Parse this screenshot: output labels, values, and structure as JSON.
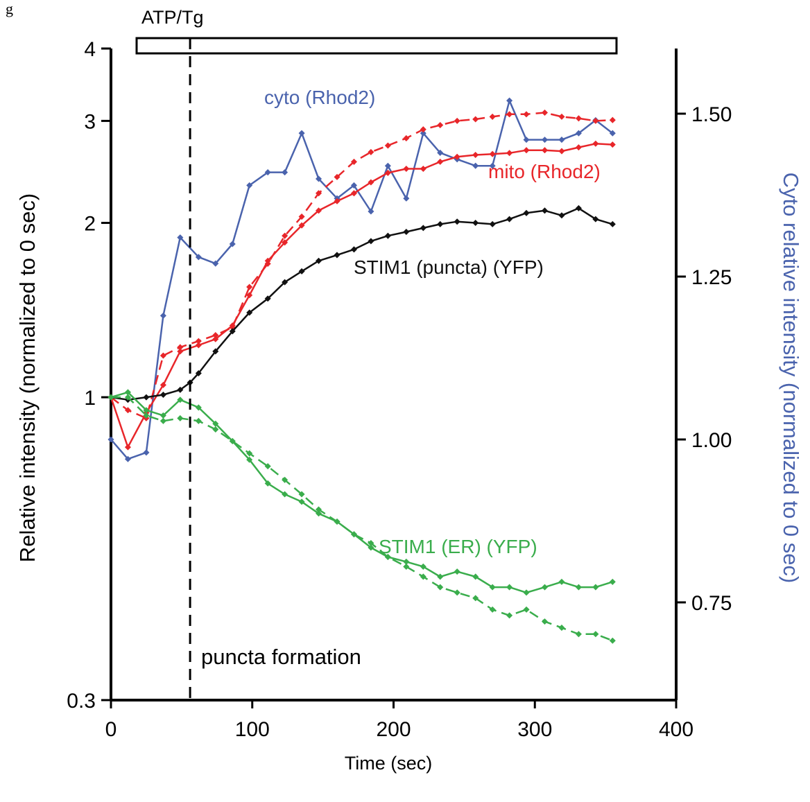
{
  "figure_letter": "g",
  "chart_data": {
    "type": "line",
    "xlabel": "Time (sec)",
    "ylabel_left": "Relative intensity (normalized to 0 sec)",
    "ylabel_right": "Cyto relative intensity (normalized to 0 sec)",
    "xlim": [
      0,
      400
    ],
    "ylim_left": [
      0.3,
      4
    ],
    "ylim_left_scale": "log",
    "ylim_right": [
      0.6,
      1.6
    ],
    "x_ticks": [
      0,
      100,
      200,
      300,
      400
    ],
    "x_tick_labels": [
      "0",
      "100",
      "200",
      "300",
      "400"
    ],
    "y_left_ticks": [
      0.3,
      1,
      2,
      3,
      4
    ],
    "y_left_tick_labels": [
      "0.3",
      "1",
      "2",
      "3",
      "4"
    ],
    "y_right_ticks": [
      0.75,
      1.0,
      1.25,
      1.5
    ],
    "y_right_tick_labels": [
      "0.75",
      "1.00",
      "1.25",
      "1.50"
    ],
    "treatment_bar": {
      "label": "ATP/Tg",
      "start": 17,
      "end": 360
    },
    "annotation": {
      "label": "puncta formation",
      "x": 56
    },
    "series": [
      {
        "name": "cyto (Rhod2)",
        "axis": "right",
        "color": "#4a63ad",
        "style": "solid",
        "x": [
          0,
          12,
          25,
          37,
          49,
          62,
          74,
          86,
          98,
          111,
          123,
          135,
          147,
          160,
          172,
          184,
          196,
          209,
          221,
          233,
          245,
          258,
          270,
          282,
          294,
          307,
          319,
          331,
          343,
          355
        ],
        "y": [
          1.0,
          0.97,
          0.98,
          1.19,
          1.31,
          1.28,
          1.27,
          1.3,
          1.39,
          1.41,
          1.41,
          1.47,
          1.4,
          1.37,
          1.39,
          1.35,
          1.42,
          1.37,
          1.47,
          1.44,
          1.43,
          1.42,
          1.42,
          1.52,
          1.46,
          1.46,
          1.46,
          1.47,
          1.49,
          1.47
        ]
      },
      {
        "name": "mito (Rhod2)",
        "axis": "left",
        "color": "#e8262a",
        "style": "solid",
        "x": [
          0,
          12,
          25,
          37,
          49,
          62,
          74,
          86,
          98,
          111,
          123,
          135,
          147,
          160,
          172,
          184,
          196,
          209,
          221,
          233,
          245,
          258,
          270,
          282,
          294,
          307,
          319,
          331,
          343,
          355
        ],
        "y": [
          1.0,
          0.82,
          0.94,
          1.05,
          1.2,
          1.23,
          1.26,
          1.33,
          1.5,
          1.72,
          1.85,
          1.98,
          2.1,
          2.18,
          2.25,
          2.35,
          2.44,
          2.48,
          2.48,
          2.55,
          2.6,
          2.62,
          2.63,
          2.64,
          2.67,
          2.67,
          2.66,
          2.7,
          2.74,
          2.73
        ]
      },
      {
        "name": "",
        "axis": "left",
        "color": "#e8262a",
        "style": "dashed",
        "x": [
          0,
          12,
          25,
          37,
          49,
          62,
          74,
          86,
          98,
          111,
          123,
          135,
          147,
          160,
          172,
          184,
          196,
          209,
          221,
          233,
          245,
          258,
          270,
          282,
          294,
          307,
          319,
          331,
          343,
          355
        ],
        "y": [
          1.0,
          0.95,
          0.92,
          1.18,
          1.22,
          1.25,
          1.28,
          1.32,
          1.55,
          1.7,
          1.9,
          2.05,
          2.25,
          2.4,
          2.55,
          2.65,
          2.72,
          2.8,
          2.9,
          2.95,
          3.0,
          3.02,
          3.05,
          3.08,
          3.08,
          3.1,
          3.05,
          3.03,
          3.0,
          3.01
        ]
      },
      {
        "name": "STIM1 (puncta) (YFP)",
        "axis": "left",
        "color": "#111111",
        "style": "solid",
        "x": [
          0,
          12,
          25,
          37,
          49,
          56,
          62,
          74,
          86,
          98,
          111,
          123,
          135,
          147,
          160,
          172,
          184,
          196,
          209,
          221,
          233,
          245,
          258,
          270,
          282,
          294,
          307,
          319,
          331,
          343,
          355
        ],
        "y": [
          1.0,
          0.99,
          1.0,
          1.01,
          1.03,
          1.06,
          1.1,
          1.2,
          1.3,
          1.4,
          1.48,
          1.58,
          1.65,
          1.72,
          1.76,
          1.8,
          1.86,
          1.9,
          1.93,
          1.96,
          1.99,
          2.01,
          2.0,
          1.99,
          2.03,
          2.08,
          2.1,
          2.06,
          2.12,
          2.03,
          1.99
        ]
      },
      {
        "name": "STIM1 (ER) (YFP)",
        "axis": "left",
        "color": "#3aad4c",
        "style": "solid",
        "x": [
          0,
          12,
          25,
          37,
          49,
          62,
          74,
          86,
          98,
          111,
          123,
          135,
          147,
          160,
          172,
          184,
          196,
          209,
          221,
          233,
          245,
          258,
          270,
          282,
          294,
          307,
          319,
          331,
          343,
          355
        ],
        "y": [
          1.0,
          1.02,
          0.95,
          0.93,
          0.99,
          0.96,
          0.9,
          0.84,
          0.78,
          0.71,
          0.68,
          0.66,
          0.63,
          0.61,
          0.58,
          0.55,
          0.53,
          0.52,
          0.51,
          0.49,
          0.5,
          0.49,
          0.47,
          0.47,
          0.46,
          0.47,
          0.48,
          0.47,
          0.47,
          0.48
        ]
      },
      {
        "name": "",
        "axis": "left",
        "color": "#3aad4c",
        "style": "dashed",
        "x": [
          0,
          12,
          25,
          37,
          49,
          62,
          74,
          86,
          98,
          111,
          123,
          135,
          147,
          160,
          172,
          184,
          196,
          209,
          221,
          233,
          245,
          258,
          270,
          282,
          294,
          307,
          319,
          331,
          343,
          355
        ],
        "y": [
          1.0,
          1.0,
          0.93,
          0.91,
          0.92,
          0.91,
          0.88,
          0.84,
          0.8,
          0.76,
          0.72,
          0.68,
          0.64,
          0.61,
          0.58,
          0.56,
          0.53,
          0.51,
          0.49,
          0.47,
          0.46,
          0.45,
          0.43,
          0.42,
          0.43,
          0.41,
          0.4,
          0.39,
          0.39,
          0.38
        ]
      }
    ]
  }
}
